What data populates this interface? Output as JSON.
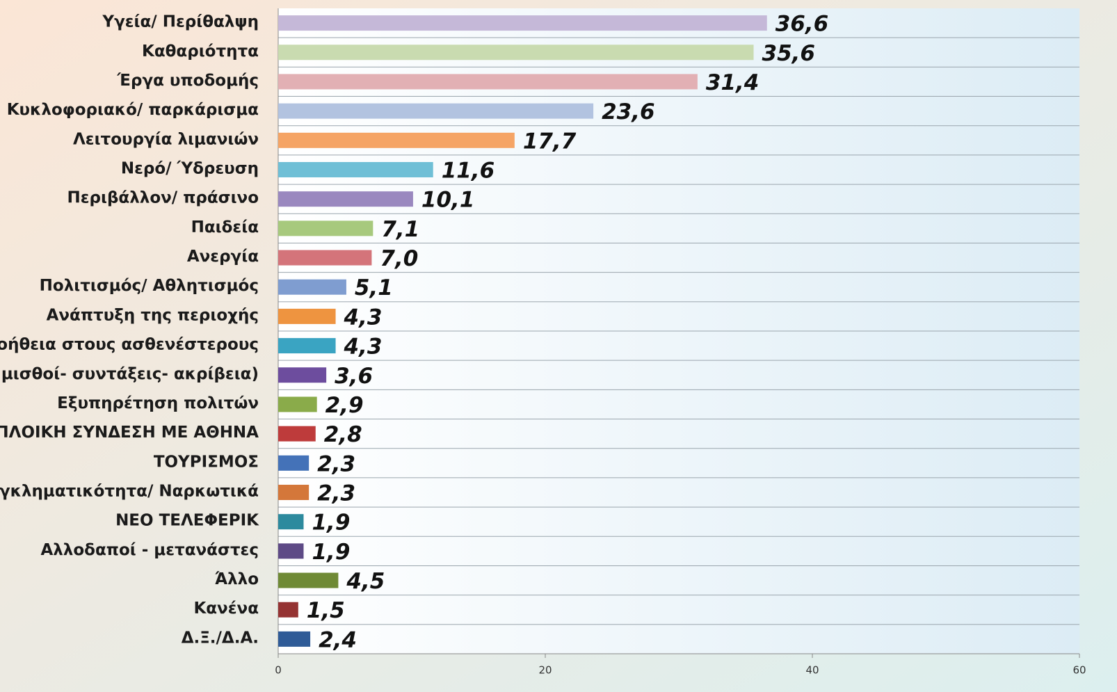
{
  "chart_data": {
    "type": "bar",
    "orientation": "horizontal",
    "categories": [
      "Υγεία/ Περίθαλψη",
      "Καθαριότητα",
      "Έργα υποδομής",
      "Κυκλοφοριακό/ παρκάρισμα",
      "Λειτουργία λιμανιών",
      "Νερό/ Ύδρευση",
      "Περιβάλλον/ πράσινο",
      "Παιδεία",
      "Ανεργία",
      "Πολιτισμός/ Αθλητισμός",
      "Ανάπτυξη της περιοχής",
      "Βοήθεια στους ασθενέστερους",
      "ί μισθοί- συντάξεις- ακρίβεια)",
      "Εξυπηρέτηση πολιτών",
      "ΟΠΛΟΙΚΗ ΣΥΝΔΕΣΗ ΜΕ ΑΘΗΝΑ",
      "ΤΟΥΡΙΣΜΟΣ",
      "Εγκληματικότητα/ Ναρκωτικά",
      "ΝΕΟ ΤΕΛΕΦΕΡΙΚ",
      "Αλλοδαποί - μετανάστες",
      "Άλλο",
      "Κανένα",
      "Δ.Ξ./Δ.Α."
    ],
    "values": [
      36.6,
      35.6,
      31.4,
      23.6,
      17.7,
      11.6,
      10.1,
      7.1,
      7.0,
      5.1,
      4.3,
      4.3,
      3.6,
      2.9,
      2.8,
      2.3,
      2.3,
      1.9,
      1.9,
      4.5,
      1.5,
      2.4
    ],
    "value_labels": [
      "36,6",
      "35,6",
      "31,4",
      "23,6",
      "17,7",
      "11,6",
      "10,1",
      "7,1",
      "7,0",
      "5,1",
      "4,3",
      "4,3",
      "3,6",
      "2,9",
      "2,8",
      "2,3",
      "2,3",
      "1,9",
      "1,9",
      "4,5",
      "1,5",
      "2,4"
    ],
    "colors": [
      "#c5b8d8",
      "#c9dbb0",
      "#e2b0b4",
      "#b2c3e0",
      "#f5a465",
      "#6fbfd6",
      "#9a88bf",
      "#a7c97d",
      "#d4747a",
      "#7f9dd0",
      "#ee9440",
      "#3aa4c2",
      "#6d4d9e",
      "#8aab4a",
      "#be3b3b",
      "#4472b8",
      "#d4773a",
      "#2d8a9e",
      "#5e4a86",
      "#6f8a35",
      "#953333",
      "#2f5b97"
    ],
    "xlim": [
      0,
      60
    ],
    "xticks": [
      0,
      20,
      40,
      60
    ],
    "grid": true
  }
}
